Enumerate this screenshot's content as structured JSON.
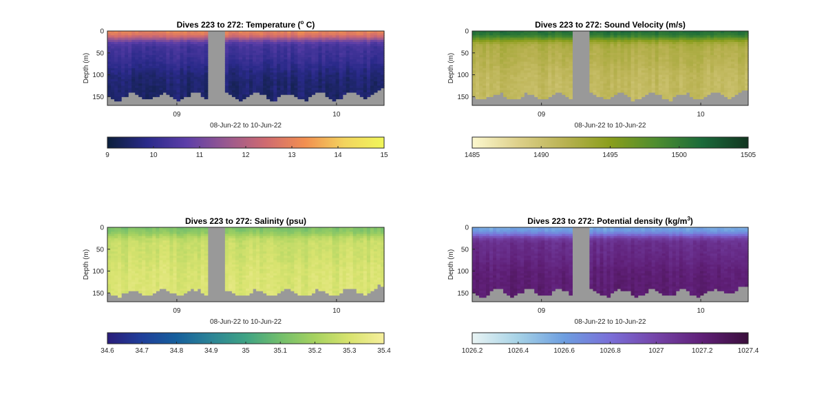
{
  "figure": {
    "background": "#ffffff",
    "gap_color": "#999999"
  },
  "chart_data": [
    {
      "type": "heatmap",
      "title": "Dives 223 to 272: Temperature (",
      "title_sup": "o",
      "title_suffix": " C)",
      "ylabel": "Depth (m)",
      "xlabel": "08-Jun-22 to 10-Jun-22",
      "ylim": [
        0,
        170
      ],
      "yticks": [
        "0",
        "50",
        "100",
        "150"
      ],
      "xticks": [
        "09",
        "10"
      ],
      "colorbar": {
        "ticks": [
          "9",
          "10",
          "11",
          "12",
          "13",
          "14",
          "15"
        ],
        "range": [
          9,
          15
        ],
        "colors": [
          "#0c1f3b",
          "#2a2a8a",
          "#5c3ea8",
          "#985890",
          "#cf6a70",
          "#f28f50",
          "#f3d45e",
          "#f0f65a"
        ]
      },
      "profile": {
        "surface": 13.1,
        "thermocline": 10.3,
        "deep": 9.5
      }
    },
    {
      "type": "heatmap",
      "title": "Dives 223 to 272: Sound Velocity (m/s)",
      "title_sup": "",
      "title_suffix": "",
      "ylabel": "Depth (m)",
      "xlabel": "08-Jun-22 to 10-Jun-22",
      "ylim": [
        0,
        170
      ],
      "yticks": [
        "0",
        "50",
        "100",
        "150"
      ],
      "xticks": [
        "09",
        "10"
      ],
      "colorbar": {
        "ticks": [
          "1485",
          "1490",
          "1495",
          "1500",
          "1505"
        ],
        "range": [
          1485,
          1505
        ],
        "colors": [
          "#fcf8cf",
          "#ddd08a",
          "#b9b252",
          "#8a9e1c",
          "#4e8d2f",
          "#1a6a3a",
          "#123520"
        ]
      },
      "profile": {
        "surface": 1501.5,
        "thermocline": 1492.3,
        "deep": 1490.8
      }
    },
    {
      "type": "heatmap",
      "title": "Dives 223 to 272: Salinity (psu)",
      "title_sup": "",
      "title_suffix": "",
      "ylabel": "Depth (m)",
      "xlabel": "08-Jun-22 to 10-Jun-22",
      "ylim": [
        0,
        170
      ],
      "yticks": [
        "0",
        "50",
        "100",
        "150"
      ],
      "xticks": [
        "09",
        "10"
      ],
      "colorbar": {
        "ticks": [
          "34.6",
          "34.7",
          "34.8",
          "34.9",
          "35",
          "35.1",
          "35.2",
          "35.3",
          "35.4"
        ],
        "range": [
          34.6,
          35.4
        ],
        "colors": [
          "#2a1d7a",
          "#1f3f9a",
          "#165f9c",
          "#2c8496",
          "#3fa384",
          "#72be6c",
          "#a6d260",
          "#d8e36f",
          "#f6ef9c"
        ]
      },
      "profile": {
        "surface": 35.12,
        "thermocline": 35.27,
        "deep": 35.31
      }
    },
    {
      "type": "heatmap",
      "title": "Dives 223 to 272: Potential density (kg/m",
      "title_sup": "3",
      "title_suffix": ")",
      "ylabel": "Depth (m)",
      "xlabel": "08-Jun-22 to 10-Jun-22",
      "ylim": [
        0,
        170
      ],
      "yticks": [
        "0",
        "50",
        "100",
        "150"
      ],
      "xticks": [
        "09",
        "10"
      ],
      "colorbar": {
        "ticks": [
          "1026.2",
          "1026.4",
          "1026.6",
          "1026.8",
          "1027",
          "1027.2",
          "1027.4"
        ],
        "range": [
          1026.2,
          1027.4
        ],
        "colors": [
          "#e9f4f4",
          "#a6d2e6",
          "#6d9ee0",
          "#7a6fd8",
          "#7544a8",
          "#5f1f77",
          "#3a0e3b"
        ]
      },
      "profile": {
        "surface": 1026.55,
        "thermocline": 1027.12,
        "deep": 1027.22
      }
    }
  ]
}
